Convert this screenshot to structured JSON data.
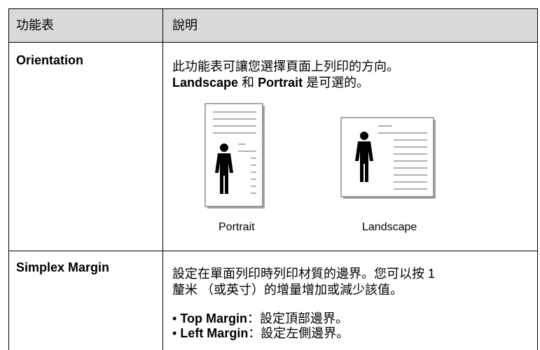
{
  "table": {
    "header": [
      "功能表",
      "說明"
    ],
    "rows": [
      {
        "menu": "Orientation",
        "description": "此功能表可讓您選擇頁面上列印的方向。",
        "options": [
          "Landscape",
          " 和 ",
          "Portrait",
          " 是可選的。"
        ],
        "figures": [
          "Portrait",
          "Landscape"
        ]
      },
      {
        "menu": "Simplex Margin",
        "description_lines": [
          "設定在單面列印時列印材質的邊界。您可以按 1",
          "釐米 （或英寸）的增量增加或減少該值。"
        ],
        "bullets": [
          {
            "term": "Top Margin",
            "text": "：設定頂部邊界。"
          },
          {
            "term": "Left Margin",
            "text": "：設定左側邊界。"
          }
        ]
      }
    ]
  }
}
